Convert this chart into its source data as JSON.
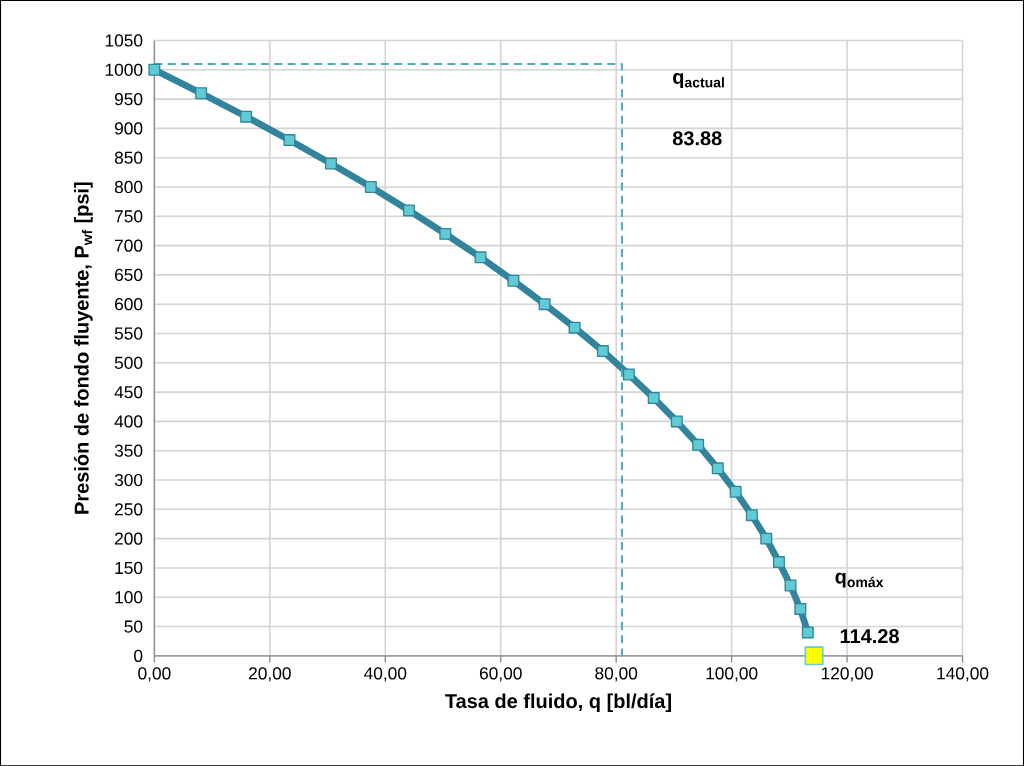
{
  "chart_data": {
    "type": "line",
    "xlabel": "Tasa de fluido, q [bl/día]",
    "ylabel": "Presión de fondo fluyente,  P$_{wf}$ [psi]",
    "xlim": [
      0,
      140
    ],
    "ylim": [
      0,
      1050
    ],
    "xticks": [
      {
        "value": 0,
        "label": "0,00"
      },
      {
        "value": 20,
        "label": "20,00"
      },
      {
        "value": 40,
        "label": "40,00"
      },
      {
        "value": 60,
        "label": "60,00"
      },
      {
        "value": 80,
        "label": "80,00"
      },
      {
        "value": 100,
        "label": "100,00"
      },
      {
        "value": 120,
        "label": "120,00"
      },
      {
        "value": 140,
        "label": "140,00"
      }
    ],
    "yticks": [
      0,
      50,
      100,
      150,
      200,
      250,
      300,
      350,
      400,
      450,
      500,
      550,
      600,
      650,
      700,
      750,
      800,
      850,
      900,
      950,
      1000,
      1050
    ],
    "grid": true,
    "marker": "square",
    "line_style": "solid",
    "series": [
      {
        "color": "#31849b",
        "x": [
          0,
          8.1,
          15.9,
          23.4,
          30.6,
          37.5,
          44.1,
          50.4,
          56.5,
          62.2,
          67.6,
          72.8,
          77.7,
          82.2,
          86.5,
          90.5,
          94.2,
          97.6,
          100.7,
          103.5,
          106.0,
          108.2,
          110.2,
          111.9,
          113.2
        ],
        "values": [
          1000,
          960,
          920,
          880,
          840,
          800,
          760,
          720,
          680,
          640,
          600,
          560,
          520,
          480,
          440,
          400,
          360,
          320,
          280,
          240,
          200,
          160,
          120,
          80,
          40
        ]
      },
      {
        "type": "line",
        "color": "#4bacc6",
        "line_style": "dashed",
        "marker": "none",
        "x": [
          0,
          81,
          81
        ],
        "values": [
          1010,
          1010,
          0
        ]
      },
      {
        "type": "scatter",
        "color": "#ffff00",
        "marker": "square",
        "x": [
          114.28
        ],
        "values": [
          0
        ]
      }
    ],
    "annotations": [
      "q$_{actual}$",
      "83.88",
      "q$_{omáx}$",
      "114.28"
    ]
  }
}
